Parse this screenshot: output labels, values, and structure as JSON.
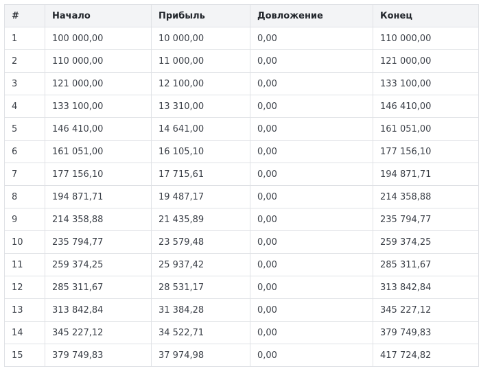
{
  "table": {
    "headers": [
      "#",
      "Начало",
      "Прибыль",
      "Довложение",
      "Конец"
    ],
    "rows": [
      [
        "1",
        "100 000,00",
        "10 000,00",
        "0,00",
        "110 000,00"
      ],
      [
        "2",
        "110 000,00",
        "11 000,00",
        "0,00",
        "121 000,00"
      ],
      [
        "3",
        "121 000,00",
        "12 100,00",
        "0,00",
        "133 100,00"
      ],
      [
        "4",
        "133 100,00",
        "13 310,00",
        "0,00",
        "146 410,00"
      ],
      [
        "5",
        "146 410,00",
        "14 641,00",
        "0,00",
        "161 051,00"
      ],
      [
        "6",
        "161 051,00",
        "16 105,10",
        "0,00",
        "177 156,10"
      ],
      [
        "7",
        "177 156,10",
        "17 715,61",
        "0,00",
        "194 871,71"
      ],
      [
        "8",
        "194 871,71",
        "19 487,17",
        "0,00",
        "214 358,88"
      ],
      [
        "9",
        "214 358,88",
        "21 435,89",
        "0,00",
        "235 794,77"
      ],
      [
        "10",
        "235 794,77",
        "23 579,48",
        "0,00",
        "259 374,25"
      ],
      [
        "11",
        "259 374,25",
        "25 937,42",
        "0,00",
        "285 311,67"
      ],
      [
        "12",
        "285 311,67",
        "28 531,17",
        "0,00",
        "313 842,84"
      ],
      [
        "13",
        "313 842,84",
        "31 384,28",
        "0,00",
        "345 227,12"
      ],
      [
        "14",
        "345 227,12",
        "34 522,71",
        "0,00",
        "379 749,83"
      ],
      [
        "15",
        "379 749,83",
        "37 974,98",
        "0,00",
        "417 724,82"
      ]
    ]
  }
}
